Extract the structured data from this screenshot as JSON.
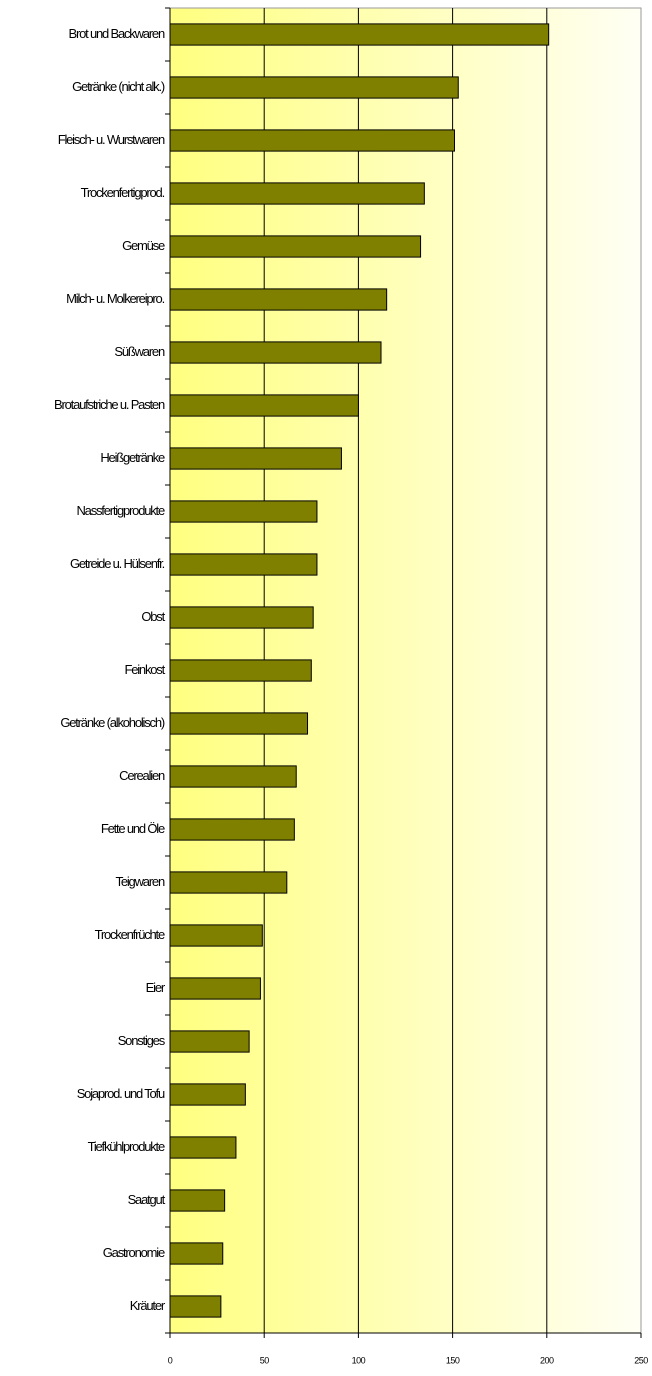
{
  "chart_data": {
    "type": "bar",
    "orientation": "horizontal",
    "categories": [
      "Brot und Backwaren",
      "Getränke (nicht alk.)",
      "Fleisch- u. Wurstwaren",
      "Trockenfertigprod.",
      "Gemüse",
      "Milch- u. Molkereipro.",
      "Süßwaren",
      "Brotaufstriche u. Pasten",
      "Heißgetränke",
      "Nassfertigprodukte",
      "Getreide u. Hülsenfr.",
      "Obst",
      "Feinkost",
      "Getränke (alkoholisch)",
      "Cerealien",
      "Fette und Öle",
      "Teigwaren",
      "Trockenfrüchte",
      "Eier",
      "Sonstiges",
      "Sojaprod. und Tofu",
      "Tiefkühlprodukte",
      "Saatgut",
      "Gastronomie",
      "Kräuter"
    ],
    "values": [
      201,
      153,
      151,
      135,
      133,
      115,
      112,
      100,
      91,
      78,
      78,
      76,
      75,
      73,
      67,
      66,
      62,
      49,
      48,
      42,
      40,
      35,
      29,
      28,
      27
    ],
    "color": "#808000",
    "xlim": [
      0,
      250
    ],
    "xticks": [
      0,
      50,
      100,
      150,
      200,
      250
    ],
    "grid": true
  }
}
